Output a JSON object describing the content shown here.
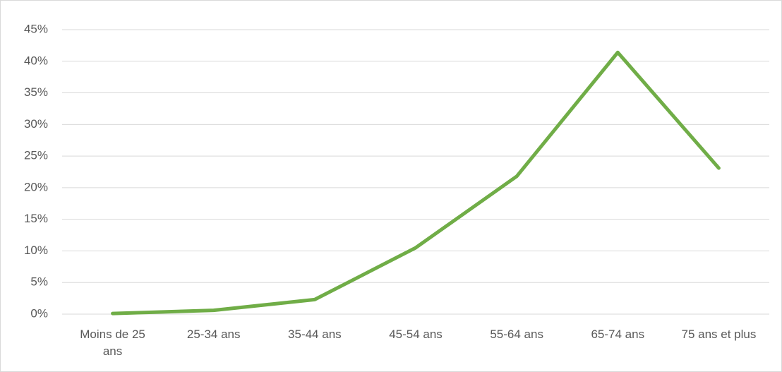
{
  "chart_data": {
    "type": "line",
    "categories": [
      "Moins de 25 ans",
      "25-34 ans",
      "35-44 ans",
      "45-54 ans",
      "55-64 ans",
      "65-74 ans",
      "75 ans et plus"
    ],
    "series": [
      {
        "color": "#70ad47",
        "values": [
          0.1,
          0.6,
          2.3,
          10.5,
          21.8,
          41.4,
          23.1
        ]
      }
    ],
    "ylim": [
      0,
      45
    ],
    "yticks": [
      {
        "value": 0,
        "label": "0%"
      },
      {
        "value": 5,
        "label": "5%"
      },
      {
        "value": 10,
        "label": "10%"
      },
      {
        "value": 15,
        "label": "15%"
      },
      {
        "value": 20,
        "label": "20%"
      },
      {
        "value": 25,
        "label": "25%"
      },
      {
        "value": 30,
        "label": "30%"
      },
      {
        "value": 35,
        "label": "35%"
      },
      {
        "value": 40,
        "label": "40%"
      },
      {
        "value": 45,
        "label": "45%"
      }
    ],
    "grid": true
  }
}
